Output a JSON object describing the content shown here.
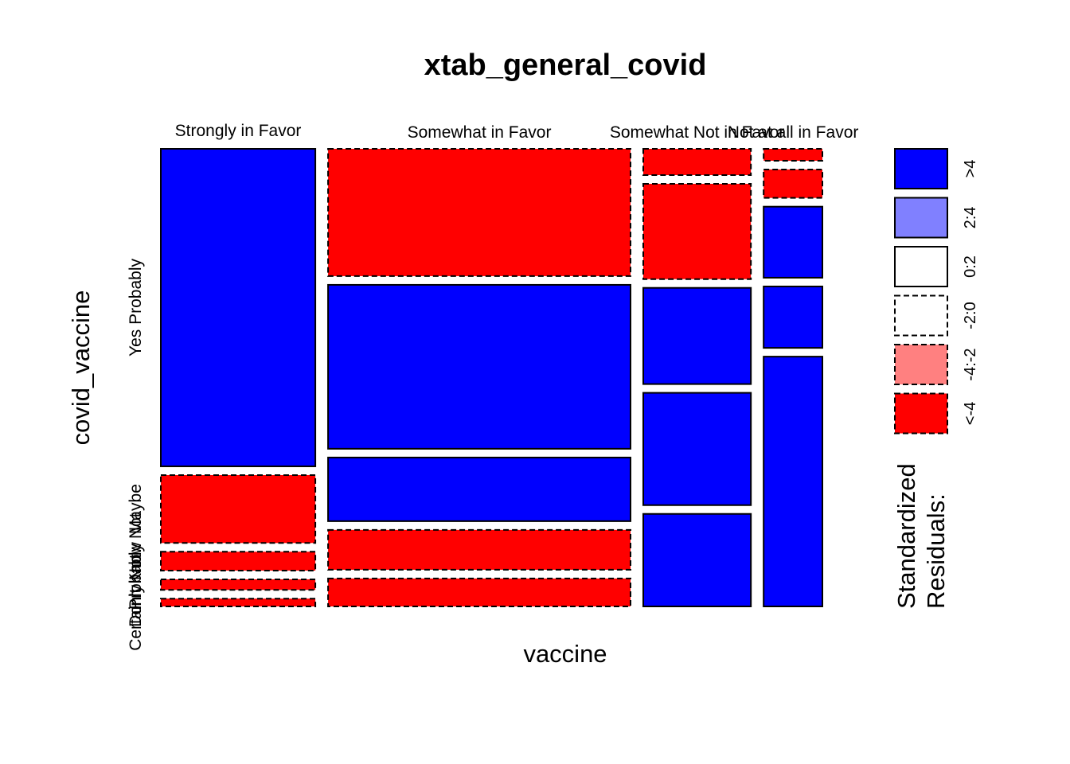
{
  "chart_data": {
    "type": "mosaic",
    "title": "xtab_general_covid",
    "xlabel": "vaccine",
    "ylabel": "covid_vaccine",
    "x_categories": [
      "Strongly in Favor",
      "Somewhat in Favor",
      "Somewhat Not in Favor",
      "Not at all in Favor"
    ],
    "y_categories": [
      "Yes Probably",
      "Maybe",
      "Probably Not",
      "Don't Know",
      "Certainly Not"
    ],
    "x_shares": [
      0.234,
      0.458,
      0.163,
      0.089
    ],
    "cells": [
      {
        "x": "Strongly in Favor",
        "shares": [
          0.692,
          0.148,
          0.041,
          0.023,
          0.017
        ],
        "residual_class": [
          "hi_pos",
          "hi_neg",
          "hi_neg",
          "hi_neg",
          "hi_neg"
        ]
      },
      {
        "x": "Somewhat in Favor",
        "shares": [
          0.278,
          0.358,
          0.139,
          0.087,
          0.061
        ],
        "residual_class": [
          "hi_neg",
          "hi_pos",
          "hi_pos",
          "hi_neg",
          "hi_neg"
        ]
      },
      {
        "x": "Somewhat Not in Favor",
        "shares": [
          0.057,
          0.207,
          0.209,
          0.244,
          0.201
        ],
        "residual_class": [
          "hi_neg",
          "hi_neg",
          "hi_pos",
          "hi_pos",
          "hi_pos"
        ]
      },
      {
        "x": "Not at all in Favor",
        "shares": [
          0.026,
          0.062,
          0.155,
          0.134,
          0.545
        ],
        "residual_class": [
          "hi_neg",
          "hi_neg",
          "hi_pos",
          "hi_pos",
          "hi_pos"
        ]
      }
    ],
    "legend": {
      "title_lines": [
        "Standardized",
        "Residuals:"
      ],
      "position": "right",
      "items": [
        {
          "label": ">4",
          "fill": "#0000FF",
          "dashed": false
        },
        {
          "label": "2:4",
          "fill": "#8080FF",
          "dashed": false
        },
        {
          "label": "0:2",
          "fill": "#FFFFFF",
          "dashed": false
        },
        {
          "label": "-2:0",
          "fill": "#FFFFFF",
          "dashed": true
        },
        {
          "label": "-4:-2",
          "fill": "#FF8080",
          "dashed": true
        },
        {
          "label": "<-4",
          "fill": "#FF0000",
          "dashed": true
        }
      ]
    },
    "colors": {
      "hi_pos": "#0000FF",
      "pos": "#8080FF",
      "low_pos": "#FFFFFF",
      "low_neg": "#FFFFFF",
      "neg": "#FF8080",
      "hi_neg": "#FF0000"
    }
  }
}
